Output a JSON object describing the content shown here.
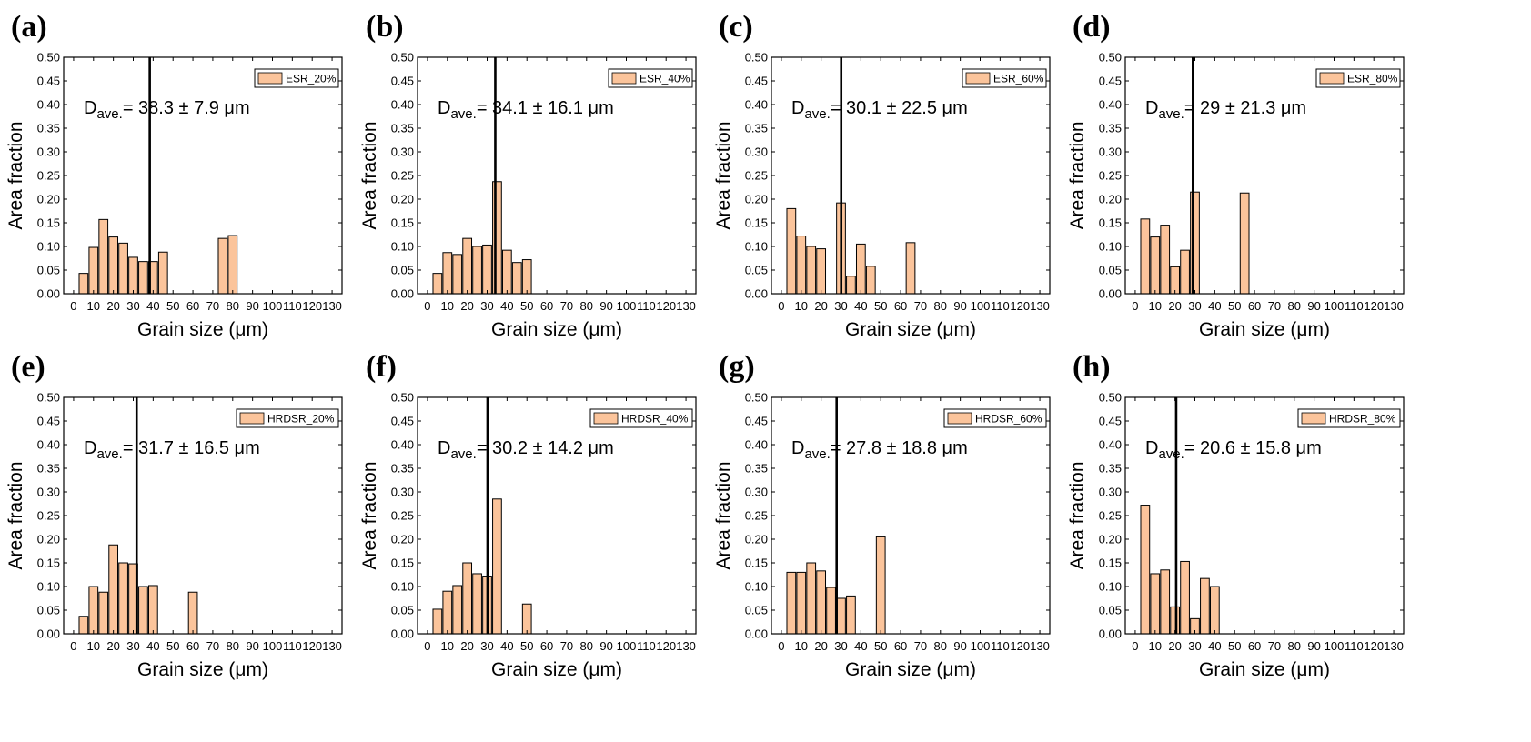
{
  "figure": {
    "bar_color": "#fbc49b",
    "bar_edge_color": "#000000",
    "mean_line_color": "#000000"
  },
  "chart_data": [
    {
      "panel": "(a)",
      "type": "bar",
      "legend": "ESR_20%",
      "xlabel": "Grain size (μm)",
      "ylabel": "Area fraction",
      "xlim": [
        -5,
        135
      ],
      "ylim": [
        0,
        0.5
      ],
      "xticks": [
        "0",
        "10",
        "20",
        "30",
        "40",
        "50",
        "60",
        "70",
        "80",
        "90",
        "100",
        "110",
        "120",
        "130"
      ],
      "yticks": [
        "0.00",
        "0.05",
        "0.10",
        "0.15",
        "0.20",
        "0.25",
        "0.30",
        "0.35",
        "0.40",
        "0.45",
        "0.50"
      ],
      "bin_width": 5,
      "bins": [
        [
          5,
          0.043
        ],
        [
          10,
          0.098
        ],
        [
          15,
          0.157
        ],
        [
          20,
          0.12
        ],
        [
          25,
          0.107
        ],
        [
          30,
          0.077
        ],
        [
          35,
          0.068
        ],
        [
          40,
          0.068
        ],
        [
          45,
          0.088
        ],
        [
          75,
          0.117
        ],
        [
          80,
          0.123
        ]
      ],
      "mean_label": "D",
      "mean_sub": "ave.",
      "mean_text": "= 38.3 ± 7.9 μm",
      "mean": 38.3
    },
    {
      "panel": "(b)",
      "type": "bar",
      "legend": "ESR_40%",
      "xlabel": "Grain size (μm)",
      "ylabel": "Area fraction",
      "xlim": [
        -5,
        135
      ],
      "ylim": [
        0,
        0.5
      ],
      "xticks": [
        "0",
        "10",
        "20",
        "30",
        "40",
        "50",
        "60",
        "70",
        "80",
        "90",
        "100",
        "110",
        "120",
        "130"
      ],
      "yticks": [
        "0.00",
        "0.05",
        "0.10",
        "0.15",
        "0.20",
        "0.25",
        "0.30",
        "0.35",
        "0.40",
        "0.45",
        "0.50"
      ],
      "bin_width": 5,
      "bins": [
        [
          5,
          0.043
        ],
        [
          10,
          0.087
        ],
        [
          15,
          0.083
        ],
        [
          20,
          0.117
        ],
        [
          25,
          0.1
        ],
        [
          30,
          0.103
        ],
        [
          35,
          0.237
        ],
        [
          40,
          0.092
        ],
        [
          45,
          0.066
        ],
        [
          50,
          0.072
        ]
      ],
      "mean_label": "D",
      "mean_sub": "ave.",
      "mean_text": "= 34.1 ± 16.1 μm",
      "mean": 34.1
    },
    {
      "panel": "(c)",
      "type": "bar",
      "legend": "ESR_60%",
      "xlabel": "Grain size (μm)",
      "ylabel": "Area fraction",
      "xlim": [
        -5,
        135
      ],
      "ylim": [
        0,
        0.5
      ],
      "xticks": [
        "0",
        "10",
        "20",
        "30",
        "40",
        "50",
        "60",
        "70",
        "80",
        "90",
        "100",
        "110",
        "120",
        "130"
      ],
      "yticks": [
        "0.00",
        "0.05",
        "0.10",
        "0.15",
        "0.20",
        "0.25",
        "0.30",
        "0.35",
        "0.40",
        "0.45",
        "0.50"
      ],
      "bin_width": 5,
      "bins": [
        [
          5,
          0.18
        ],
        [
          10,
          0.122
        ],
        [
          15,
          0.1
        ],
        [
          20,
          0.095
        ],
        [
          30,
          0.192
        ],
        [
          35,
          0.037
        ],
        [
          40,
          0.105
        ],
        [
          45,
          0.058
        ],
        [
          65,
          0.108
        ]
      ],
      "mean_label": "D",
      "mean_sub": "ave.",
      "mean_text": "= 30.1 ± 22.5 μm",
      "mean": 30.1
    },
    {
      "panel": "(d)",
      "type": "bar",
      "legend": "ESR_80%",
      "xlabel": "Grain size (μm)",
      "ylabel": "Area fraction",
      "xlim": [
        -5,
        135
      ],
      "ylim": [
        0,
        0.5
      ],
      "xticks": [
        "0",
        "10",
        "20",
        "30",
        "40",
        "50",
        "60",
        "70",
        "80",
        "90",
        "100",
        "110",
        "120",
        "130"
      ],
      "yticks": [
        "0.00",
        "0.05",
        "0.10",
        "0.15",
        "0.20",
        "0.25",
        "0.30",
        "0.35",
        "0.40",
        "0.45",
        "0.50"
      ],
      "bin_width": 5,
      "bins": [
        [
          5,
          0.158
        ],
        [
          10,
          0.12
        ],
        [
          15,
          0.145
        ],
        [
          20,
          0.057
        ],
        [
          25,
          0.092
        ],
        [
          30,
          0.215
        ],
        [
          55,
          0.213
        ]
      ],
      "mean_label": "D",
      "mean_sub": "ave.",
      "mean_text": "= 29 ± 21.3 μm",
      "mean": 29
    },
    {
      "panel": "(e)",
      "type": "bar",
      "legend": "HRDSR_20%",
      "xlabel": "Grain size (μm)",
      "ylabel": "Area fraction",
      "xlim": [
        -5,
        135
      ],
      "ylim": [
        0,
        0.5
      ],
      "xticks": [
        "0",
        "10",
        "20",
        "30",
        "40",
        "50",
        "60",
        "70",
        "80",
        "90",
        "100",
        "110",
        "120",
        "130"
      ],
      "yticks": [
        "0.00",
        "0.05",
        "0.10",
        "0.15",
        "0.20",
        "0.25",
        "0.30",
        "0.35",
        "0.40",
        "0.45",
        "0.50"
      ],
      "bin_width": 5,
      "bins": [
        [
          5,
          0.037
        ],
        [
          10,
          0.1
        ],
        [
          15,
          0.088
        ],
        [
          20,
          0.188
        ],
        [
          25,
          0.15
        ],
        [
          30,
          0.148
        ],
        [
          35,
          0.1
        ],
        [
          40,
          0.102
        ],
        [
          60,
          0.088
        ]
      ],
      "mean_label": "D",
      "mean_sub": "ave.",
      "mean_text": "= 31.7 ± 16.5 μm",
      "mean": 31.7
    },
    {
      "panel": "(f)",
      "type": "bar",
      "legend": "HRDSR_40%",
      "xlabel": "Grain size (μm)",
      "ylabel": "Area fraction",
      "xlim": [
        -5,
        135
      ],
      "ylim": [
        0,
        0.5
      ],
      "xticks": [
        "0",
        "10",
        "20",
        "30",
        "40",
        "50",
        "60",
        "70",
        "80",
        "90",
        "100",
        "110",
        "120",
        "130"
      ],
      "yticks": [
        "0.00",
        "0.05",
        "0.10",
        "0.15",
        "0.20",
        "0.25",
        "0.30",
        "0.35",
        "0.40",
        "0.45",
        "0.50"
      ],
      "bin_width": 5,
      "bins": [
        [
          5,
          0.052
        ],
        [
          10,
          0.09
        ],
        [
          15,
          0.102
        ],
        [
          20,
          0.15
        ],
        [
          25,
          0.127
        ],
        [
          30,
          0.122
        ],
        [
          35,
          0.285
        ],
        [
          50,
          0.063
        ]
      ],
      "mean_label": "D",
      "mean_sub": "ave.",
      "mean_text": "= 30.2 ± 14.2 μm",
      "mean": 30.2
    },
    {
      "panel": "(g)",
      "type": "bar",
      "legend": "HRDSR_60%",
      "xlabel": "Grain size (μm)",
      "ylabel": "Area fraction",
      "xlim": [
        -5,
        135
      ],
      "ylim": [
        0,
        0.5
      ],
      "xticks": [
        "0",
        "10",
        "20",
        "30",
        "40",
        "50",
        "60",
        "70",
        "80",
        "90",
        "100",
        "110",
        "120",
        "130"
      ],
      "yticks": [
        "0.00",
        "0.05",
        "0.10",
        "0.15",
        "0.20",
        "0.25",
        "0.30",
        "0.35",
        "0.40",
        "0.45",
        "0.50"
      ],
      "bin_width": 5,
      "bins": [
        [
          5,
          0.13
        ],
        [
          10,
          0.13
        ],
        [
          15,
          0.15
        ],
        [
          20,
          0.133
        ],
        [
          25,
          0.098
        ],
        [
          30,
          0.075
        ],
        [
          35,
          0.08
        ],
        [
          50,
          0.205
        ]
      ],
      "mean_label": "D",
      "mean_sub": "ave.",
      "mean_text": "= 27.8 ± 18.8 μm",
      "mean": 27.8
    },
    {
      "panel": "(h)",
      "type": "bar",
      "legend": "HRDSR_80%",
      "xlabel": "Grain size (μm)",
      "ylabel": "Area fraction",
      "xlim": [
        -5,
        135
      ],
      "ylim": [
        0,
        0.5
      ],
      "xticks": [
        "0",
        "10",
        "20",
        "30",
        "40",
        "50",
        "60",
        "70",
        "80",
        "90",
        "100",
        "110",
        "120",
        "130"
      ],
      "yticks": [
        "0.00",
        "0.05",
        "0.10",
        "0.15",
        "0.20",
        "0.25",
        "0.30",
        "0.35",
        "0.40",
        "0.45",
        "0.50"
      ],
      "bin_width": 5,
      "bins": [
        [
          5,
          0.272
        ],
        [
          10,
          0.127
        ],
        [
          15,
          0.135
        ],
        [
          20,
          0.057
        ],
        [
          25,
          0.153
        ],
        [
          30,
          0.032
        ],
        [
          35,
          0.117
        ],
        [
          40,
          0.1
        ]
      ],
      "mean_label": "D",
      "mean_sub": "ave.",
      "mean_text": "= 20.6 ± 15.8 μm",
      "mean": 20.6
    }
  ]
}
